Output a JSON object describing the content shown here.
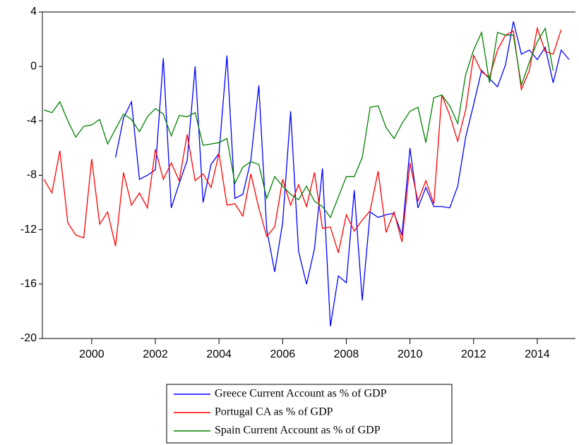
{
  "chart_data": {
    "type": "line",
    "x": [
      1998.5,
      1998.75,
      1999,
      1999.25,
      1999.5,
      1999.75,
      2000,
      2000.25,
      2000.5,
      2000.75,
      2001,
      2001.25,
      2001.5,
      2001.75,
      2002,
      2002.25,
      2002.5,
      2002.75,
      2003,
      2003.25,
      2003.5,
      2003.75,
      2004,
      2004.25,
      2004.5,
      2004.75,
      2005,
      2005.25,
      2005.5,
      2005.75,
      2006,
      2006.25,
      2006.5,
      2006.75,
      2007,
      2007.25,
      2007.5,
      2007.75,
      2008,
      2008.25,
      2008.5,
      2008.75,
      2009,
      2009.25,
      2009.5,
      2009.75,
      2010,
      2010.25,
      2010.5,
      2010.75,
      2011,
      2011.25,
      2011.5,
      2011.75,
      2012,
      2012.25,
      2012.5,
      2012.75,
      2013,
      2013.25,
      2013.5,
      2013.75,
      2014,
      2014.25,
      2014.5,
      2014.75,
      2015
    ],
    "series": [
      {
        "name": "Greece Current Account as % of GDP",
        "color": "#0000ff",
        "values": [
          null,
          null,
          null,
          null,
          null,
          null,
          null,
          null,
          null,
          -6.7,
          -3.8,
          -2.6,
          -8.3,
          -8.0,
          -7.6,
          0.6,
          -10.4,
          -8.6,
          -6.9,
          0.0,
          -10.0,
          -7.2,
          -6.4,
          0.8,
          -9.7,
          -9.4,
          -6.9,
          -1.4,
          -12.0,
          -15.1,
          -11.5,
          -3.3,
          -13.6,
          -16.0,
          -13.4,
          -7.5,
          -19.1,
          -15.4,
          -15.9,
          -9.1,
          -17.2,
          -10.7,
          -11.1,
          -10.9,
          -10.8,
          -12.4,
          -6.0,
          -10.4,
          -8.9,
          -10.3,
          -10.3,
          -10.4,
          -8.8,
          -5.2,
          -2.8,
          -0.3,
          -0.9,
          -1.5,
          0.1,
          3.3,
          0.9,
          1.2,
          0.5,
          1.4,
          -1.2,
          1.2,
          0.5
        ]
      },
      {
        "name": "Portugal CA as % of GDP",
        "color": "#ff0000",
        "values": [
          -8.3,
          -9.3,
          -6.2,
          -11.5,
          -12.4,
          -12.6,
          -6.8,
          -11.6,
          -10.7,
          -13.2,
          -7.8,
          -10.2,
          -9.3,
          -10.4,
          -6.1,
          -8.3,
          -7.1,
          -8.4,
          -5.0,
          -8.4,
          -7.9,
          -8.9,
          -6.4,
          -10.2,
          -10.1,
          -11.0,
          -7.9,
          -10.4,
          -12.5,
          -11.8,
          -8.3,
          -10.2,
          -8.7,
          -10.3,
          -7.8,
          -11.9,
          -11.8,
          -13.7,
          -10.9,
          -12.1,
          -11.3,
          -10.6,
          -7.7,
          -12.2,
          -10.7,
          -12.9,
          -7.1,
          -9.9,
          -8.4,
          -10.1,
          -2.1,
          -3.6,
          -5.5,
          -3.2,
          0.8,
          -0.4,
          -0.8,
          1.2,
          2.3,
          2.6,
          -1.7,
          -0.3,
          2.8,
          1.1,
          0.9,
          2.7,
          null
        ]
      },
      {
        "name": "Spain Current Account as % of GDP",
        "color": "#008000",
        "values": [
          -3.2,
          -3.4,
          -2.6,
          -4.0,
          -5.2,
          -4.4,
          -4.3,
          -3.9,
          -5.7,
          -4.6,
          -3.5,
          -3.9,
          -4.8,
          -3.7,
          -3.1,
          -3.5,
          -5.1,
          -3.6,
          -3.7,
          -3.4,
          -5.8,
          -5.7,
          -5.6,
          -5.3,
          -8.6,
          -7.4,
          -7.0,
          -7.2,
          -9.7,
          -8.1,
          -8.8,
          -9.4,
          -9.8,
          -8.8,
          -9.9,
          -10.3,
          -11.1,
          -9.6,
          -8.1,
          -8.1,
          -6.7,
          -3.0,
          -2.9,
          -4.5,
          -5.3,
          -4.2,
          -3.3,
          -3.0,
          -5.6,
          -2.3,
          -2.1,
          -2.9,
          -4.2,
          -0.6,
          1.2,
          2.5,
          -1.2,
          2.5,
          2.3,
          2.3,
          -1.4,
          0.3,
          1.8,
          2.8,
          -0.3,
          null,
          null
        ]
      }
    ],
    "xlim": [
      1998.45,
      2015.2
    ],
    "xticks": [
      2000,
      2002,
      2004,
      2006,
      2008,
      2010,
      2012,
      2014
    ],
    "ylim": [
      -20,
      4
    ],
    "yticks": [
      4,
      0,
      -4,
      -8,
      -12,
      -16,
      -20
    ],
    "grid": false,
    "legend": "bottom"
  }
}
